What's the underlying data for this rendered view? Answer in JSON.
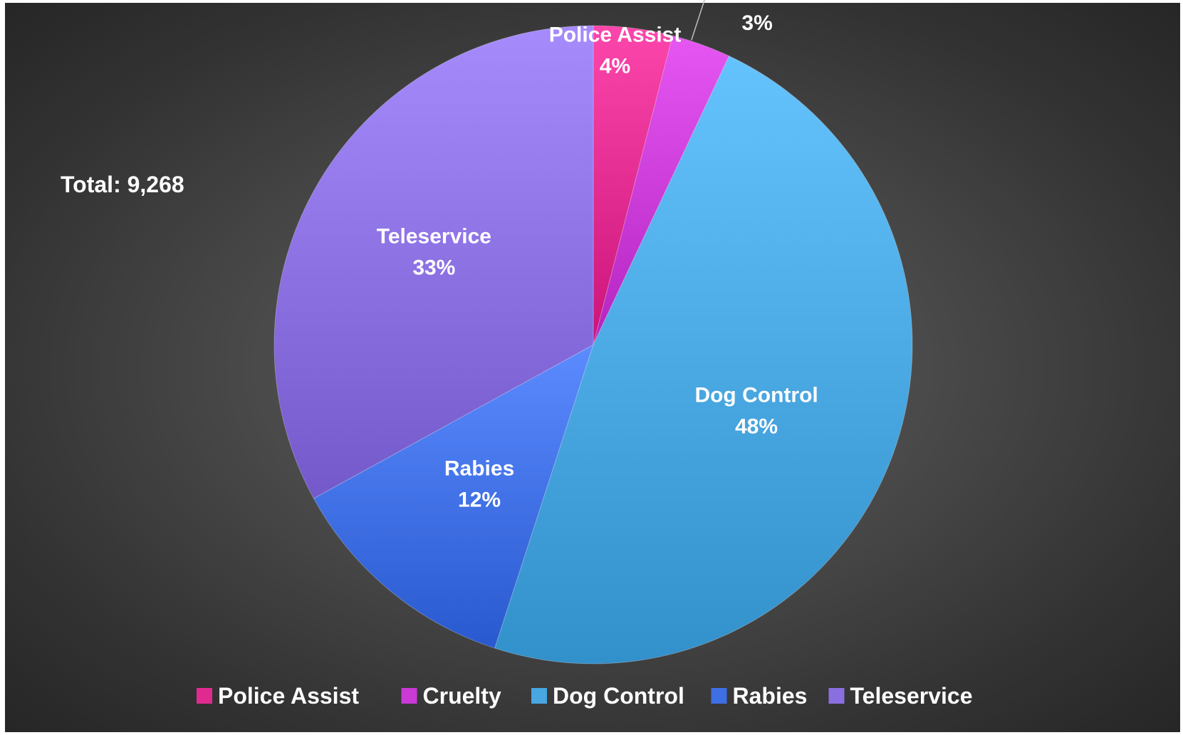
{
  "chart_data": {
    "type": "pie",
    "title": "",
    "annotation": "Total: 9,268",
    "slices": [
      {
        "name": "Police Assist",
        "percent": 4,
        "label": "4%",
        "color": "#e02a8f"
      },
      {
        "name": "Cruelty",
        "percent": 3,
        "label": "3%",
        "color": "#c93ad6"
      },
      {
        "name": "Dog Control",
        "percent": 48,
        "label": "48%",
        "color": "#48a6e0"
      },
      {
        "name": "Rabies",
        "percent": 12,
        "label": "12%",
        "color": "#3f6fe4"
      },
      {
        "name": "Teleservice",
        "percent": 33,
        "label": "33%",
        "color": "#8a6fe0"
      }
    ],
    "legend": {
      "position": "bottom",
      "entries": [
        "Police Assist",
        "Cruelty",
        "Dog Control",
        "Rabies",
        "Teleservice"
      ]
    }
  }
}
